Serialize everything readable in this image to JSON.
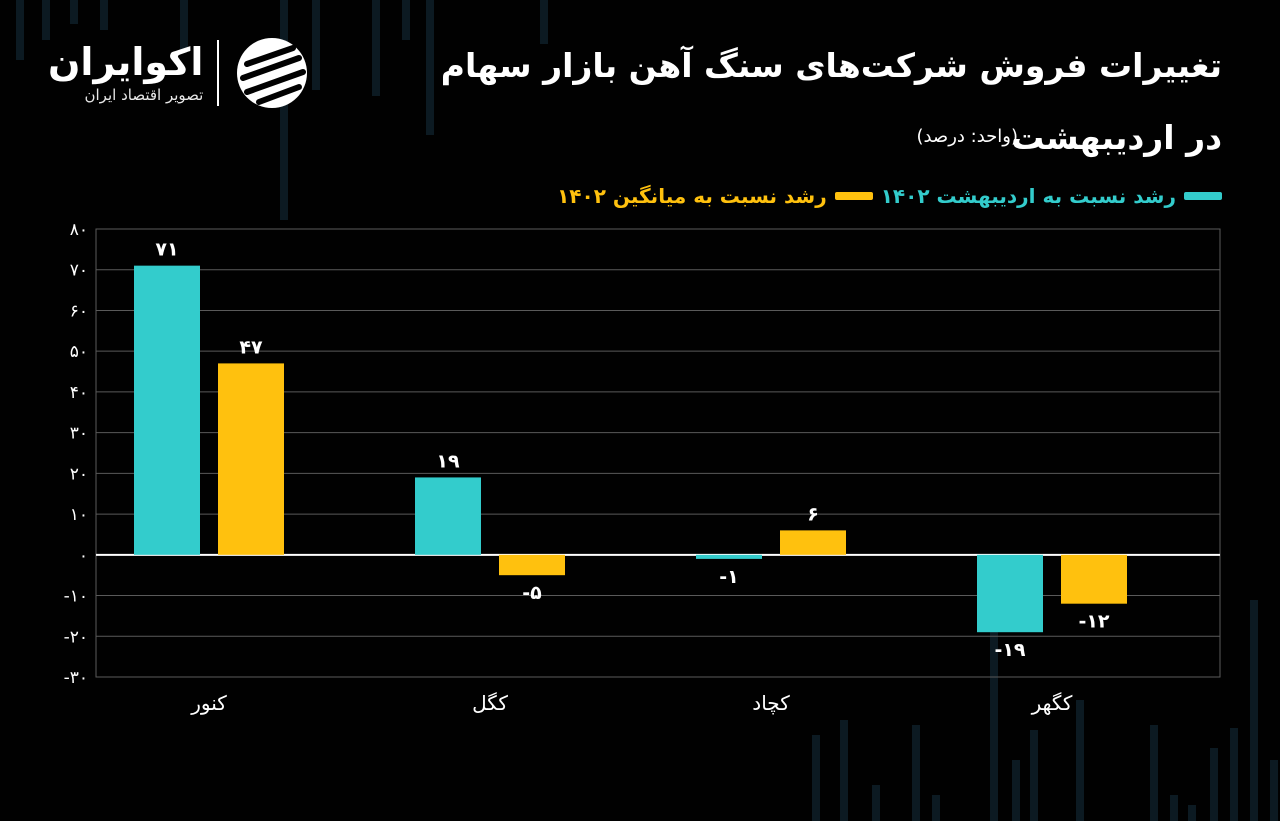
{
  "brand": {
    "name": "اکوایران",
    "tagline": "تصویر اقتصاد ایران"
  },
  "header": {
    "title_line1": "تغییرات فروش شرکت‌های سنگ آهن بازار سهام",
    "title_line2": "در اردیبهشت",
    "unit": "(واحد: درصد)"
  },
  "colors": {
    "series1": "#33cccc",
    "series2": "#ffc10e",
    "background": "#010101",
    "grid": "#5a5a5a"
  },
  "chart_data": {
    "type": "bar",
    "categories": [
      "کنور",
      "کگل",
      "کچاد",
      "کگهر"
    ],
    "series": [
      {
        "name": "رشد نسبت به اردیبهشت ۱۴۰۲",
        "values": [
          71,
          19,
          -1,
          -19
        ],
        "labels": [
          "۷۱",
          "۱۹",
          "-۱",
          "-۱۹"
        ]
      },
      {
        "name": "رشد نسبت به میانگین ۱۴۰۲",
        "values": [
          47,
          -5,
          6,
          -12
        ],
        "labels": [
          "۴۷",
          "-۵",
          "۶",
          "-۱۲"
        ]
      }
    ],
    "yticks": [
      80,
      70,
      60,
      50,
      40,
      30,
      20,
      10,
      0,
      -10,
      -20,
      -30
    ],
    "ytick_labels": [
      "۸۰",
      "۷۰",
      "۶۰",
      "۵۰",
      "۴۰",
      "۳۰",
      "۲۰",
      "۱۰",
      "۰",
      "-۱۰",
      "-۲۰",
      "-۳۰"
    ],
    "ylim": [
      -30,
      80
    ],
    "grid": true,
    "legend_position": "top-right"
  }
}
